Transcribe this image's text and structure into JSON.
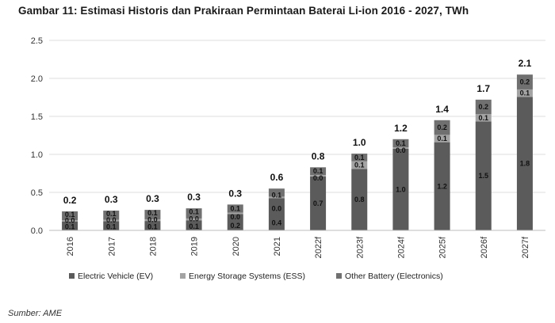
{
  "title": "Gambar 11: Estimasi Historis dan Prakiraan Permintaan Baterai Li-ion 2016 - 2027, TWh",
  "source": "Sumber: AME",
  "colors": {
    "ev": "#5b5b5b",
    "ess": "#a3a3a3",
    "other": "#707070",
    "grid": "#dedede"
  },
  "chart_data": {
    "type": "bar",
    "stacked": true,
    "categories": [
      "2016",
      "2017",
      "2018",
      "2019",
      "2020",
      "2021",
      "2022f",
      "2023f",
      "2024f",
      "2025f",
      "2026f",
      "2027f"
    ],
    "series": [
      {
        "name": "Electric Vehicle (EV)",
        "values": [
          0.1,
          0.1,
          0.1,
          0.1,
          0.2,
          0.4,
          0.7,
          0.8,
          1.0,
          1.2,
          1.5,
          1.8
        ]
      },
      {
        "name": "Energy Storage Systems (ESS)",
        "values": [
          0.0,
          0.0,
          0.0,
          0.0,
          0.0,
          0.0,
          0.0,
          0.1,
          0.0,
          0.1,
          0.1,
          0.1
        ]
      },
      {
        "name": "Other Battery (Electronics)",
        "values": [
          0.1,
          0.1,
          0.1,
          0.1,
          0.1,
          0.1,
          0.1,
          0.1,
          0.1,
          0.2,
          0.2,
          0.2
        ]
      }
    ],
    "segment_labels": [
      [
        "0.1",
        "0.1",
        "0.1",
        "0.1",
        "0.2",
        "0.4",
        "0.7",
        "0.8",
        "1.0",
        "1.2",
        "1.5",
        "1.8"
      ],
      [
        "0.0",
        "0.0",
        "0.0",
        "0.0",
        "0.0",
        "0.0",
        "0.0",
        "0.1",
        "0.0",
        "0.1",
        "0.1",
        "0.1"
      ],
      [
        "0.1",
        "0.1",
        "0.1",
        "0.1",
        "0.1",
        "0.1",
        "0.1",
        "0.1",
        "0.1",
        "0.2",
        "0.2",
        "0.2"
      ]
    ],
    "totals": [
      0.25,
      0.26,
      0.27,
      0.29,
      0.34,
      0.55,
      0.83,
      1.01,
      1.2,
      1.45,
      1.72,
      2.05
    ],
    "total_labels": [
      "0.2",
      "0.3",
      "0.3",
      "0.3",
      "0.3",
      "0.6",
      "0.8",
      "1.0",
      "1.2",
      "1.4",
      "1.7",
      "2.1"
    ],
    "yticks": [
      "0.0",
      "0.5",
      "1.0",
      "1.5",
      "2.0",
      "2.5"
    ],
    "ylim": [
      0,
      2.5
    ],
    "xlabel": "",
    "ylabel": "",
    "grid": true,
    "legend_position": "bottom"
  }
}
